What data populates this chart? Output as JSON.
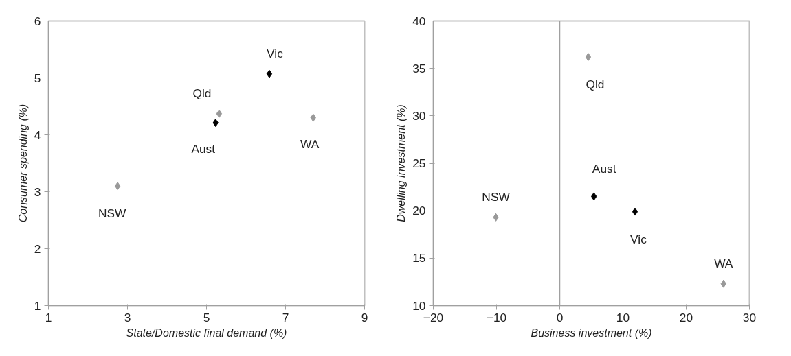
{
  "chart_data": [
    {
      "type": "scatter",
      "xlabel": "State/Domestic final demand (%)",
      "ylabel": "Consumer spending (%)",
      "xlim": [
        1,
        9
      ],
      "xticks": [
        1,
        3,
        5,
        7,
        9
      ],
      "ylim": [
        1,
        6
      ],
      "yticks": [
        1,
        2,
        3,
        4,
        5,
        6
      ],
      "marker": "diamond",
      "grid": false,
      "series": [
        {
          "name": "NSW",
          "color": "#999999",
          "x": [
            2.75
          ],
          "values": [
            3.1
          ]
        },
        {
          "name": "Qld",
          "color": "#999999",
          "x": [
            5.32
          ],
          "values": [
            4.37
          ]
        },
        {
          "name": "Aust",
          "color": "#000000",
          "x": [
            5.23
          ],
          "values": [
            4.21
          ]
        },
        {
          "name": "Vic",
          "color": "#000000",
          "x": [
            6.59
          ],
          "values": [
            5.07
          ]
        },
        {
          "name": "WA",
          "color": "#999999",
          "x": [
            7.7
          ],
          "values": [
            4.3
          ]
        }
      ]
    },
    {
      "type": "scatter",
      "xlabel": "Business investment (%)",
      "ylabel": "Dwelling investment (%)",
      "xlim": [
        -20,
        30
      ],
      "xticks": [
        -20,
        -10,
        0,
        10,
        20,
        30
      ],
      "ylim": [
        10,
        40
      ],
      "yticks": [
        10,
        15,
        20,
        25,
        30,
        35,
        40
      ],
      "marker": "diamond",
      "grid": false,
      "ref_lines": [
        {
          "axis": "x",
          "value": 0,
          "color": "#a0a0a0"
        }
      ],
      "series": [
        {
          "name": "NSW",
          "color": "#999999",
          "x": [
            -10.1
          ],
          "values": [
            19.3
          ]
        },
        {
          "name": "Qld",
          "color": "#999999",
          "x": [
            4.5
          ],
          "values": [
            36.2
          ]
        },
        {
          "name": "Aust",
          "color": "#000000",
          "x": [
            5.4
          ],
          "values": [
            21.5
          ]
        },
        {
          "name": "Vic",
          "color": "#000000",
          "x": [
            11.9
          ],
          "values": [
            19.9
          ]
        },
        {
          "name": "WA",
          "color": "#999999",
          "x": [
            25.9
          ],
          "values": [
            12.3
          ]
        }
      ]
    }
  ]
}
